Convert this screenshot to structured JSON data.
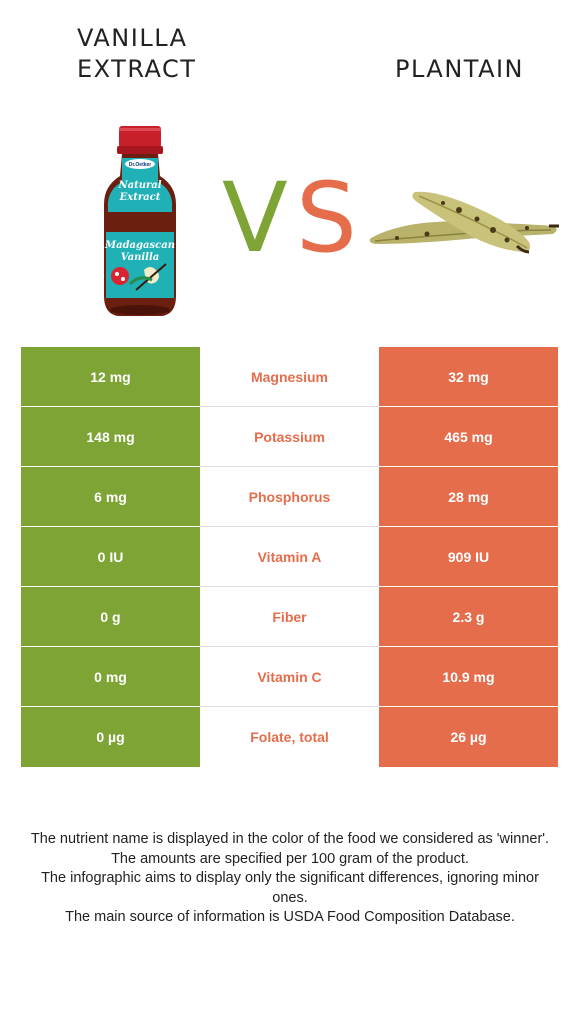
{
  "header": {
    "left_food_line1": "VANILLA",
    "left_food_line2": "EXTRACT",
    "vs_v": "V",
    "vs_s": "S",
    "right_food": "PLANTAIN"
  },
  "bottle_label": {
    "brand": "Dr.Oetker",
    "line1": "Natural",
    "line2": "Extract",
    "line3": "Madagascan",
    "line4": "Vanilla"
  },
  "colors": {
    "left_food": "#7da434",
    "right_food": "#e56d4b"
  },
  "rows": [
    {
      "left": "12 mg",
      "nutrient": "Magnesium",
      "right": "32 mg"
    },
    {
      "left": "148 mg",
      "nutrient": "Potassium",
      "right": "465 mg"
    },
    {
      "left": "6 mg",
      "nutrient": "Phosphorus",
      "right": "28 mg"
    },
    {
      "left": "0 IU",
      "nutrient": "Vitamin A",
      "right": "909 IU"
    },
    {
      "left": "0 g",
      "nutrient": "Fiber",
      "right": "2.3 g"
    },
    {
      "left": "0 mg",
      "nutrient": "Vitamin C",
      "right": "10.9 mg"
    },
    {
      "left": "0 µg",
      "nutrient": "Folate, total",
      "right": "26 µg"
    }
  ],
  "notes": [
    "The nutrient name is displayed in the color of the food we considered as 'winner'.",
    "The amounts are specified per 100 gram of the product.",
    "The infographic aims to display only the significant differences, ignoring minor ones.",
    "The main source of information is USDA Food Composition Database."
  ]
}
